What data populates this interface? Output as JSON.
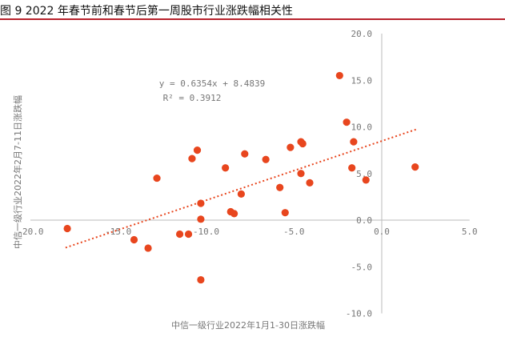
{
  "chart_data": {
    "type": "scatter",
    "title": "图 9  2022 年春节前和春节后第一周股市行业涨跌幅相关性",
    "xlabel": "中信一级行业2022年1月1-30日涨跌幅",
    "ylabel": "中信一级行业2022年2月7-11日涨跌幅",
    "xlim": [
      -20,
      5
    ],
    "ylim": [
      -10,
      20
    ],
    "xticks": [
      "-20.0",
      "-15.0",
      "-10.0",
      "-5.0",
      "0.0",
      "5.0"
    ],
    "yticks": [
      "20.0",
      "15.0",
      "10.0",
      "5.0",
      "0.0",
      "-5.0",
      "-10.0"
    ],
    "grid": false,
    "color": "#e8461e",
    "points": [
      [
        -17.9,
        -0.9
      ],
      [
        -14.1,
        -2.1
      ],
      [
        -13.3,
        -3.0
      ],
      [
        -12.8,
        4.5
      ],
      [
        -11.5,
        -1.5
      ],
      [
        -11.0,
        -1.5
      ],
      [
        -10.8,
        6.6
      ],
      [
        -10.5,
        7.5
      ],
      [
        -10.3,
        -6.4
      ],
      [
        -10.3,
        1.8
      ],
      [
        -10.3,
        0.1
      ],
      [
        -8.9,
        5.6
      ],
      [
        -8.6,
        0.9
      ],
      [
        -8.4,
        0.7
      ],
      [
        -8.0,
        2.8
      ],
      [
        -7.8,
        7.1
      ],
      [
        -6.6,
        6.5
      ],
      [
        -5.8,
        3.5
      ],
      [
        -5.5,
        0.8
      ],
      [
        -5.2,
        7.8
      ],
      [
        -4.6,
        5.0
      ],
      [
        -4.6,
        8.4
      ],
      [
        -4.5,
        8.2
      ],
      [
        -4.1,
        4.0
      ],
      [
        -2.4,
        15.5
      ],
      [
        -2.0,
        10.5
      ],
      [
        -1.7,
        5.6
      ],
      [
        -1.6,
        8.4
      ],
      [
        -0.9,
        4.3
      ],
      [
        1.9,
        5.7
      ]
    ],
    "trendline": {
      "slope": 0.6354,
      "intercept": 8.4839,
      "x_range": [
        -18,
        2
      ],
      "equation": "y = 0.6354x + 8.4839",
      "r2": "R² = 0.3912"
    }
  }
}
